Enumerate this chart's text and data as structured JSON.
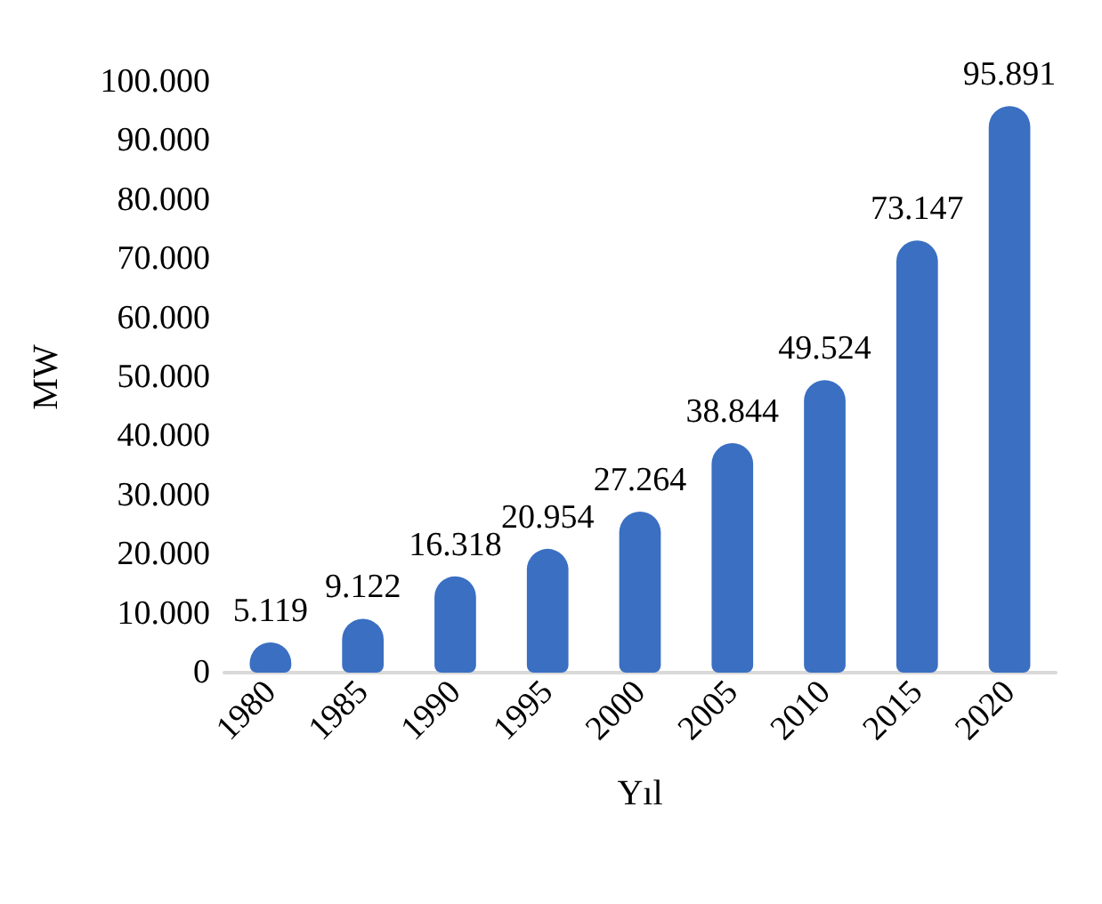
{
  "chart_data": {
    "type": "bar",
    "xlabel": "Yıl",
    "ylabel": "MW",
    "categories": [
      "1980",
      "1985",
      "1990",
      "1995",
      "2000",
      "2005",
      "2010",
      "2015",
      "2020"
    ],
    "values": [
      5119,
      9122,
      16318,
      20954,
      27264,
      38844,
      49524,
      73147,
      95891
    ],
    "value_labels": [
      "5.119",
      "9.122",
      "16.318",
      "20.954",
      "27.264",
      "38.844",
      "49.524",
      "73.147",
      "95.891"
    ],
    "color": "#3a6fc2",
    "ylim": [
      0,
      100000
    ],
    "yticks": [
      {
        "value": 0,
        "label": "0"
      },
      {
        "value": 10000,
        "label": "10.000"
      },
      {
        "value": 20000,
        "label": "20.000"
      },
      {
        "value": 30000,
        "label": "30.000"
      },
      {
        "value": 40000,
        "label": "40.000"
      },
      {
        "value": 50000,
        "label": "50.000"
      },
      {
        "value": 60000,
        "label": "60.000"
      },
      {
        "value": 70000,
        "label": "70.000"
      },
      {
        "value": 80000,
        "label": "80.000"
      },
      {
        "value": 90000,
        "label": "90.000"
      },
      {
        "value": 100000,
        "label": "100.000"
      }
    ],
    "grid": false
  }
}
